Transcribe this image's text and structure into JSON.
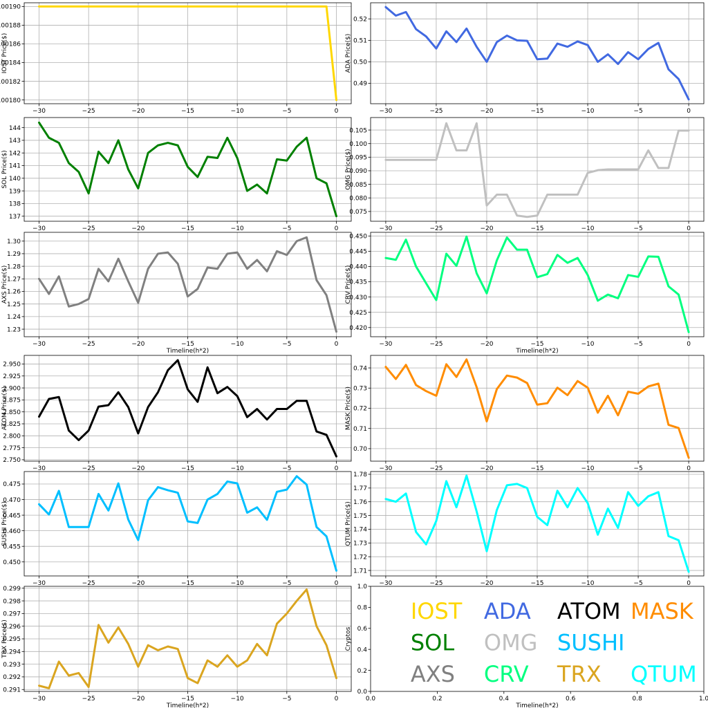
{
  "chart_data": [
    {
      "type": "line",
      "ylabel": "IOST Price($)",
      "xlabel": "",
      "color": "#FFD700",
      "x": [
        -30,
        -29,
        -28,
        -27,
        -26,
        -25,
        -24,
        -23,
        -22,
        -21,
        -20,
        -19,
        -18,
        -17,
        -16,
        -15,
        -14,
        -13,
        -12,
        -11,
        -10,
        -9,
        -8,
        -7,
        -6,
        -5,
        -4,
        -3,
        -2,
        -1,
        0
      ],
      "values": [
        0.0019,
        0.0019,
        0.0019,
        0.0019,
        0.0019,
        0.0019,
        0.0019,
        0.0019,
        0.0019,
        0.0019,
        0.0019,
        0.0019,
        0.0019,
        0.0019,
        0.0019,
        0.0019,
        0.0019,
        0.0019,
        0.0019,
        0.0019,
        0.0019,
        0.0019,
        0.0019,
        0.0019,
        0.0019,
        0.0019,
        0.0019,
        0.0019,
        0.0019,
        0.0019,
        0.0018
      ],
      "ylim": [
        0.001796,
        0.001904
      ],
      "yticks": [
        "0.00180",
        "0.00182",
        "0.00184",
        "0.00186",
        "0.00188",
        "0.00190"
      ],
      "ytick_values": [
        0.0018,
        0.00182,
        0.00184,
        0.00186,
        0.00188,
        0.0019
      ],
      "xticks": [
        "−30",
        "−25",
        "−20",
        "−15",
        "−10",
        "−5",
        "0"
      ],
      "xtick_values": [
        -30,
        -25,
        -20,
        -15,
        -10,
        -5,
        0
      ]
    },
    {
      "type": "line",
      "ylabel": "ADA  Price($)",
      "xlabel": "",
      "color": "#4169E1",
      "x": [
        -30,
        -29,
        -28,
        -27,
        -26,
        -25,
        -24,
        -23,
        -22,
        -21,
        -20,
        -19,
        -18,
        -17,
        -16,
        -15,
        -14,
        -13,
        -12,
        -11,
        -10,
        -9,
        -8,
        -7,
        -6,
        -5,
        -4,
        -3,
        -2,
        -1,
        0
      ],
      "values": [
        0.5255,
        0.5215,
        0.5232,
        0.5152,
        0.5118,
        0.5062,
        0.5142,
        0.5092,
        0.5155,
        0.507,
        0.5,
        0.5092,
        0.5122,
        0.51,
        0.5098,
        0.5012,
        0.5015,
        0.5085,
        0.507,
        0.5095,
        0.5078,
        0.5,
        0.5035,
        0.499,
        0.5045,
        0.5012,
        0.506,
        0.5088,
        0.4965,
        0.492,
        0.4825
      ],
      "ylim": [
        0.4805,
        0.5275
      ],
      "yticks": [
        "0.49",
        "0.50",
        "0.51",
        "0.52"
      ],
      "ytick_values": [
        0.49,
        0.5,
        0.51,
        0.52
      ],
      "xticks": [
        "−30",
        "−25",
        "−20",
        "−15",
        "−10",
        "−5",
        "0"
      ],
      "xtick_values": [
        -30,
        -25,
        -20,
        -15,
        -10,
        -5,
        0
      ]
    },
    {
      "type": "line",
      "ylabel": "SOL Price($)",
      "xlabel": "",
      "color": "#008000",
      "x": [
        -30,
        -29,
        -28,
        -27,
        -26,
        -25,
        -24,
        -23,
        -22,
        -21,
        -20,
        -19,
        -18,
        -17,
        -16,
        -15,
        -14,
        -13,
        -12,
        -11,
        -10,
        -9,
        -8,
        -7,
        -6,
        -5,
        -4,
        -3,
        -2,
        -1,
        0
      ],
      "values": [
        144.4,
        143.2,
        142.8,
        141.2,
        140.5,
        138.8,
        142.1,
        141.2,
        143.0,
        140.7,
        139.2,
        142.0,
        142.6,
        142.8,
        142.6,
        140.9,
        140.1,
        141.7,
        141.6,
        143.2,
        141.6,
        139.0,
        139.5,
        138.8,
        141.5,
        141.4,
        142.5,
        143.2,
        140.0,
        139.6,
        137.0
      ],
      "ylim": [
        136.6,
        144.8
      ],
      "yticks": [
        "137",
        "138",
        "139",
        "140",
        "141",
        "142",
        "143",
        "144"
      ],
      "ytick_values": [
        137,
        138,
        139,
        140,
        141,
        142,
        143,
        144
      ],
      "xticks": [
        "−30",
        "−25",
        "−20",
        "−15",
        "−10",
        "−5",
        "0"
      ],
      "xtick_values": [
        -30,
        -25,
        -20,
        -15,
        -10,
        -5,
        0
      ]
    },
    {
      "type": "line",
      "ylabel": "OMG  Price($)",
      "xlabel": "",
      "color": "#C0C0C0",
      "x": [
        -30,
        -29,
        -28,
        -27,
        -26,
        -25,
        -24,
        -23,
        -22,
        -21,
        -20,
        -19,
        -18,
        -17,
        -16,
        -15,
        -14,
        -13,
        -12,
        -11,
        -10,
        -9,
        -8,
        -7,
        -6,
        -5,
        -4,
        -3,
        -2,
        -1,
        0
      ],
      "values": [
        0.094,
        0.094,
        0.094,
        0.094,
        0.094,
        0.094,
        0.1075,
        0.0975,
        0.0975,
        0.1075,
        0.0772,
        0.0812,
        0.0812,
        0.0735,
        0.073,
        0.0735,
        0.0812,
        0.0812,
        0.0812,
        0.0812,
        0.0892,
        0.0902,
        0.0905,
        0.0905,
        0.0905,
        0.0905,
        0.0975,
        0.091,
        0.091,
        0.1048,
        0.1048
      ],
      "ylim": [
        0.0714,
        0.1096
      ],
      "yticks": [
        "0.075",
        "0.080",
        "0.085",
        "0.090",
        "0.095",
        "0.100",
        "0.105"
      ],
      "ytick_values": [
        0.075,
        0.08,
        0.085,
        0.09,
        0.095,
        0.1,
        0.105
      ],
      "xticks": [
        "−30",
        "−25",
        "−20",
        "−15",
        "−10",
        "−5",
        "0"
      ],
      "xtick_values": [
        -30,
        -25,
        -20,
        -15,
        -10,
        -5,
        0
      ]
    },
    {
      "type": "line",
      "ylabel": "AXS  Price($)",
      "xlabel": "Timeline(h*2)",
      "color": "#808080",
      "x": [
        -30,
        -29,
        -28,
        -27,
        -26,
        -25,
        -24,
        -23,
        -22,
        -21,
        -20,
        -19,
        -18,
        -17,
        -16,
        -15,
        -14,
        -13,
        -12,
        -11,
        -10,
        -9,
        -8,
        -7,
        -6,
        -5,
        -4,
        -3,
        -2,
        -1,
        0
      ],
      "values": [
        1.27,
        1.258,
        1.272,
        1.248,
        1.25,
        1.254,
        1.278,
        1.268,
        1.286,
        1.268,
        1.251,
        1.278,
        1.29,
        1.291,
        1.282,
        1.256,
        1.262,
        1.279,
        1.278,
        1.29,
        1.291,
        1.278,
        1.285,
        1.276,
        1.292,
        1.289,
        1.3,
        1.303,
        1.269,
        1.257,
        1.228
      ],
      "ylim": [
        1.224,
        1.307
      ],
      "yticks": [
        "1.23",
        "1.24",
        "1.25",
        "1.26",
        "1.27",
        "1.28",
        "1.29",
        "1.30"
      ],
      "ytick_values": [
        1.23,
        1.24,
        1.25,
        1.26,
        1.27,
        1.28,
        1.29,
        1.3
      ],
      "xticks": [
        "−30",
        "−25",
        "−20",
        "−15",
        "−10",
        "−5",
        "0"
      ],
      "xtick_values": [
        -30,
        -25,
        -20,
        -15,
        -10,
        -5,
        0
      ]
    },
    {
      "type": "line",
      "ylabel": "CRV  Price($)",
      "xlabel": "Timeline(h*2)",
      "color": "#00FF7F",
      "x": [
        -30,
        -29,
        -28,
        -27,
        -26,
        -25,
        -24,
        -23,
        -22,
        -21,
        -20,
        -19,
        -18,
        -17,
        -16,
        -15,
        -14,
        -13,
        -12,
        -11,
        -10,
        -9,
        -8,
        -7,
        -6,
        -5,
        -4,
        -3,
        -2,
        -1,
        0
      ],
      "values": [
        0.4428,
        0.4422,
        0.4488,
        0.44,
        0.4345,
        0.429,
        0.4442,
        0.4402,
        0.4498,
        0.4378,
        0.4312,
        0.442,
        0.4495,
        0.4455,
        0.4455,
        0.4365,
        0.4375,
        0.4438,
        0.4412,
        0.4428,
        0.4372,
        0.4288,
        0.4308,
        0.4296,
        0.4372,
        0.4366,
        0.4433,
        0.4432,
        0.4335,
        0.4308,
        0.4185
      ],
      "ylim": [
        0.417,
        0.4512
      ],
      "yticks": [
        "0.420",
        "0.425",
        "0.430",
        "0.435",
        "0.440",
        "0.445",
        "0.450"
      ],
      "ytick_values": [
        0.42,
        0.425,
        0.43,
        0.435,
        0.44,
        0.445,
        0.45
      ],
      "xticks": [
        "−30",
        "−25",
        "−20",
        "−15",
        "−10",
        "−5",
        "0"
      ],
      "xtick_values": [
        -30,
        -25,
        -20,
        -15,
        -10,
        -5,
        0
      ]
    },
    {
      "type": "line",
      "ylabel": "ATOM  Price($)",
      "xlabel": "",
      "color": "#000000",
      "x": [
        -30,
        -29,
        -28,
        -27,
        -26,
        -25,
        -24,
        -23,
        -22,
        -21,
        -20,
        -19,
        -18,
        -17,
        -16,
        -15,
        -14,
        -13,
        -12,
        -11,
        -10,
        -9,
        -8,
        -7,
        -6,
        -5,
        -4,
        -3,
        -2,
        -1,
        0
      ],
      "values": [
        2.84,
        2.877,
        2.881,
        2.811,
        2.791,
        2.811,
        2.861,
        2.864,
        2.891,
        2.86,
        2.805,
        2.86,
        2.891,
        2.937,
        2.958,
        2.897,
        2.871,
        2.943,
        2.889,
        2.902,
        2.883,
        2.839,
        2.856,
        2.834,
        2.856,
        2.856,
        2.873,
        2.873,
        2.809,
        2.802,
        2.757
      ],
      "ylim": [
        2.747,
        2.968
      ],
      "yticks": [
        "2.750",
        "2.775",
        "2.800",
        "2.825",
        "2.850",
        "2.875",
        "2.900",
        "2.925",
        "2.950"
      ],
      "ytick_values": [
        2.75,
        2.775,
        2.8,
        2.825,
        2.85,
        2.875,
        2.9,
        2.925,
        2.95
      ],
      "xticks": [
        "−30",
        "−25",
        "−20",
        "−15",
        "−10",
        "−5",
        "0"
      ],
      "xtick_values": [
        -30,
        -25,
        -20,
        -15,
        -10,
        -5,
        0
      ]
    },
    {
      "type": "line",
      "ylabel": "MASK  Price($)",
      "xlabel": "",
      "color": "#FF8C00",
      "x": [
        -30,
        -29,
        -28,
        -27,
        -26,
        -25,
        -24,
        -23,
        -22,
        -21,
        -20,
        -19,
        -18,
        -17,
        -16,
        -15,
        -14,
        -13,
        -12,
        -11,
        -10,
        -9,
        -8,
        -7,
        -6,
        -5,
        -4,
        -3,
        -2,
        -1,
        0
      ],
      "values": [
        0.7405,
        0.7345,
        0.7415,
        0.7315,
        0.7285,
        0.7262,
        0.7418,
        0.7355,
        0.7442,
        0.7305,
        0.7135,
        0.7295,
        0.7362,
        0.7352,
        0.7325,
        0.7218,
        0.7225,
        0.7302,
        0.7265,
        0.7335,
        0.7302,
        0.7178,
        0.7262,
        0.7165,
        0.7282,
        0.7272,
        0.7308,
        0.7322,
        0.7118,
        0.7102,
        0.6955
      ],
      "ylim": [
        0.6938,
        0.7462
      ],
      "yticks": [
        "0.70",
        "0.71",
        "0.72",
        "0.73",
        "0.74"
      ],
      "ytick_values": [
        0.7,
        0.71,
        0.72,
        0.73,
        0.74
      ],
      "xticks": [
        "−30",
        "−25",
        "−20",
        "−15",
        "−10",
        "−5",
        "0"
      ],
      "xtick_values": [
        -30,
        -25,
        -20,
        -15,
        -10,
        -5,
        0
      ]
    },
    {
      "type": "line",
      "ylabel": "SUSHI  Price($)",
      "xlabel": "",
      "color": "#00BFFF",
      "x": [
        -30,
        -29,
        -28,
        -27,
        -26,
        -25,
        -24,
        -23,
        -22,
        -21,
        -20,
        -19,
        -18,
        -17,
        -16,
        -15,
        -14,
        -13,
        -12,
        -11,
        -10,
        -9,
        -8,
        -7,
        -6,
        -5,
        -4,
        -3,
        -2,
        -1,
        0
      ],
      "values": [
        0.4685,
        0.4652,
        0.4728,
        0.4612,
        0.4612,
        0.4612,
        0.4718,
        0.4665,
        0.4752,
        0.4636,
        0.457,
        0.4698,
        0.474,
        0.473,
        0.4722,
        0.463,
        0.4625,
        0.47,
        0.4718,
        0.4758,
        0.4752,
        0.4658,
        0.4675,
        0.4635,
        0.4725,
        0.4732,
        0.4775,
        0.4748,
        0.4612,
        0.4582,
        0.4472
      ],
      "ylim": [
        0.4455,
        0.479
      ],
      "yticks": [
        "0.450",
        "0.455",
        "0.460",
        "0.465",
        "0.470",
        "0.475"
      ],
      "ytick_values": [
        0.45,
        0.455,
        0.46,
        0.465,
        0.47,
        0.475
      ],
      "xticks": [
        "−30",
        "−25",
        "−20",
        "−15",
        "−10",
        "−5",
        "0"
      ],
      "xtick_values": [
        -30,
        -25,
        -20,
        -15,
        -10,
        -5,
        0
      ]
    },
    {
      "type": "line",
      "ylabel": "QTUM  Price($)",
      "xlabel": "",
      "color": "#00FFFF",
      "x": [
        -30,
        -29,
        -28,
        -27,
        -26,
        -25,
        -24,
        -23,
        -22,
        -21,
        -20,
        -19,
        -18,
        -17,
        -16,
        -15,
        -14,
        -13,
        -12,
        -11,
        -10,
        -9,
        -8,
        -7,
        -6,
        -5,
        -4,
        -3,
        -2,
        -1,
        0
      ],
      "values": [
        1.762,
        1.76,
        1.766,
        1.738,
        1.729,
        1.746,
        1.775,
        1.756,
        1.779,
        1.753,
        1.724,
        1.754,
        1.772,
        1.773,
        1.77,
        1.749,
        1.743,
        1.768,
        1.756,
        1.77,
        1.759,
        1.736,
        1.755,
        1.741,
        1.767,
        1.757,
        1.764,
        1.767,
        1.735,
        1.732,
        1.709
      ],
      "ylim": [
        1.706,
        1.782
      ],
      "yticks": [
        "1.71",
        "1.72",
        "1.73",
        "1.74",
        "1.75",
        "1.76",
        "1.77",
        "1.78"
      ],
      "ytick_values": [
        1.71,
        1.72,
        1.73,
        1.74,
        1.75,
        1.76,
        1.77,
        1.78
      ],
      "xticks": [
        "−30",
        "−25",
        "−20",
        "−15",
        "−10",
        "−5",
        "0"
      ],
      "xtick_values": [
        -30,
        -25,
        -20,
        -15,
        -10,
        -5,
        0
      ]
    },
    {
      "type": "line",
      "ylabel": "TRX  Price($)",
      "xlabel": "Timeline(h*2)",
      "color": "#DAA520",
      "x": [
        -30,
        -29,
        -28,
        -27,
        -26,
        -25,
        -24,
        -23,
        -22,
        -21,
        -20,
        -19,
        -18,
        -17,
        -16,
        -15,
        -14,
        -13,
        -12,
        -11,
        -10,
        -9,
        -8,
        -7,
        -6,
        -5,
        -4,
        -3,
        -2,
        -1,
        0
      ],
      "values": [
        0.2913,
        0.2911,
        0.2932,
        0.2921,
        0.2923,
        0.2912,
        0.2961,
        0.2947,
        0.2959,
        0.2946,
        0.2928,
        0.2945,
        0.2941,
        0.2944,
        0.2942,
        0.2919,
        0.2915,
        0.2933,
        0.2928,
        0.2937,
        0.2928,
        0.2933,
        0.2946,
        0.2937,
        0.2962,
        0.297,
        0.298,
        0.2989,
        0.296,
        0.2945,
        0.2919
      ],
      "ylim": [
        0.29085,
        0.29915
      ],
      "yticks": [
        "0.291",
        "0.292",
        "0.293",
        "0.294",
        "0.295",
        "0.296",
        "0.297",
        "0.298",
        "0.299"
      ],
      "ytick_values": [
        0.291,
        0.292,
        0.293,
        0.294,
        0.295,
        0.296,
        0.297,
        0.298,
        0.299
      ],
      "xticks": [
        "−30",
        "−25",
        "−20",
        "−15",
        "−10",
        "−5",
        "0"
      ],
      "xtick_values": [
        -30,
        -25,
        -20,
        -15,
        -10,
        -5,
        0
      ]
    },
    {
      "type": "table",
      "ylabel": "Cryptos",
      "xlabel": "Timeline(h*2)",
      "xlim": [
        0,
        1
      ],
      "ylim": [
        0,
        1
      ],
      "xticks": [
        "0.0",
        "0.2",
        "0.4",
        "0.6",
        "0.8",
        "1.0"
      ],
      "xtick_values": [
        0,
        0.2,
        0.4,
        0.6,
        0.8,
        1.0
      ],
      "yticks": [
        "0.0",
        "0.2",
        "0.4",
        "0.6",
        "0.8",
        "1.0"
      ],
      "ytick_values": [
        0,
        0.2,
        0.4,
        0.6,
        0.8,
        1.0
      ],
      "labels": [
        {
          "text": "IOST",
          "color": "#FFD700",
          "x": 0.12,
          "y": 0.77
        },
        {
          "text": "ADA",
          "color": "#4169E1",
          "x": 0.34,
          "y": 0.77
        },
        {
          "text": "ATOM",
          "color": "#000000",
          "x": 0.56,
          "y": 0.77
        },
        {
          "text": "MASK",
          "color": "#FF8C00",
          "x": 0.78,
          "y": 0.77
        },
        {
          "text": "SOL",
          "color": "#008000",
          "x": 0.12,
          "y": 0.47
        },
        {
          "text": "OMG",
          "color": "#C0C0C0",
          "x": 0.34,
          "y": 0.47
        },
        {
          "text": "SUSHI",
          "color": "#00BFFF",
          "x": 0.56,
          "y": 0.47
        },
        {
          "text": "AXS",
          "color": "#808080",
          "x": 0.12,
          "y": 0.17
        },
        {
          "text": "CRV",
          "color": "#00FF7F",
          "x": 0.34,
          "y": 0.17
        },
        {
          "text": "TRX",
          "color": "#DAA520",
          "x": 0.56,
          "y": 0.17
        },
        {
          "text": "QTUM",
          "color": "#00FFFF",
          "x": 0.78,
          "y": 0.17
        }
      ]
    }
  ]
}
